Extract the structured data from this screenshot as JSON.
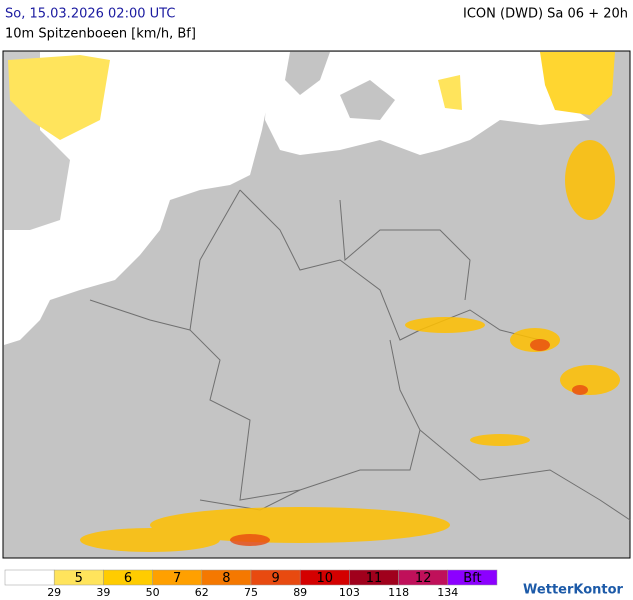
{
  "header": {
    "datetime": "So, 15.03.2026 02:00 UTC",
    "model": "ICON (DWD) Sa 06 + 20h",
    "parameter": "10m Spitzenboeen [km/h, Bf]"
  },
  "legend": {
    "colors": [
      "#ffffff",
      "#ffe45c",
      "#ffcc00",
      "#ffa000",
      "#f57800",
      "#e84a10",
      "#d40000",
      "#a0001c",
      "#c0105a",
      "#8c00ff"
    ],
    "bft_labels": [
      "5",
      "6",
      "7",
      "8",
      "9",
      "10",
      "11",
      "12",
      "Bft"
    ],
    "thresholds": [
      "29",
      "39",
      "50",
      "62",
      "75",
      "89",
      "103",
      "118",
      "134"
    ]
  },
  "logo": "WetterKontor"
}
